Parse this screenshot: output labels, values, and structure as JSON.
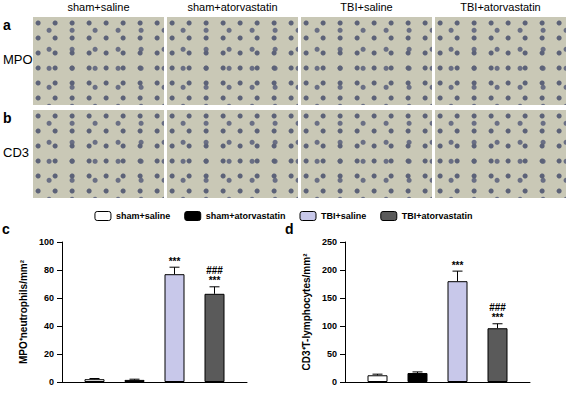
{
  "image_panels": {
    "columns": [
      "sham+saline",
      "sham+atorvastatin",
      "TBI+saline",
      "TBI+atorvastatin"
    ],
    "rows": [
      {
        "label": "a",
        "stain": "MPO"
      },
      {
        "label": "b",
        "stain": "CD3"
      }
    ]
  },
  "chart_data": [
    {
      "type": "bar",
      "panel": "c",
      "ylabel": "MPO⁺neutrophils/mm²",
      "categories": [
        null
      ],
      "series": [
        {
          "name": "sham+saline",
          "color": "#ffffff",
          "values": [
            2
          ],
          "errors": [
            0.5
          ]
        },
        {
          "name": "sham+atorvastatin",
          "color": "#000000",
          "values": [
            1.5
          ],
          "errors": [
            0.5
          ]
        },
        {
          "name": "TBI+saline",
          "color": "#c8c8ea",
          "values": [
            77
          ],
          "errors": [
            5
          ]
        },
        {
          "name": "TBI+atorvastatin",
          "color": "#5a5a5a",
          "values": [
            63
          ],
          "errors": [
            5
          ]
        }
      ],
      "annotations": [
        {
          "series": "TBI+saline",
          "text": "***"
        },
        {
          "series": "TBI+atorvastatin",
          "text": "###"
        },
        {
          "series": "TBI+atorvastatin",
          "text": "***"
        }
      ],
      "ylim": [
        0,
        100
      ],
      "yticks": [
        0,
        20,
        40,
        60,
        80,
        100
      ],
      "grid": false,
      "legend": "top",
      "tick_labels": "y"
    },
    {
      "type": "bar",
      "panel": "d",
      "ylabel": "CD3⁺T-lymphocytes/mm²",
      "categories": [
        null
      ],
      "series": [
        {
          "name": "sham+saline",
          "color": "#ffffff",
          "values": [
            12
          ],
          "errors": [
            2
          ]
        },
        {
          "name": "sham+atorvastatin",
          "color": "#000000",
          "values": [
            16
          ],
          "errors": [
            2
          ]
        },
        {
          "name": "TBI+saline",
          "color": "#c8c8ea",
          "values": [
            180
          ],
          "errors": [
            18
          ]
        },
        {
          "name": "TBI+atorvastatin",
          "color": "#5a5a5a",
          "values": [
            96
          ],
          "errors": [
            8
          ]
        }
      ],
      "annotations": [
        {
          "series": "TBI+saline",
          "text": "***"
        },
        {
          "series": "TBI+atorvastatin",
          "text": "###"
        },
        {
          "series": "TBI+atorvastatin",
          "text": "***"
        }
      ],
      "ylim": [
        0,
        250
      ],
      "yticks": [
        0,
        50,
        100,
        150,
        200,
        250
      ],
      "grid": false,
      "legend": "top",
      "tick_labels": "y"
    }
  ]
}
